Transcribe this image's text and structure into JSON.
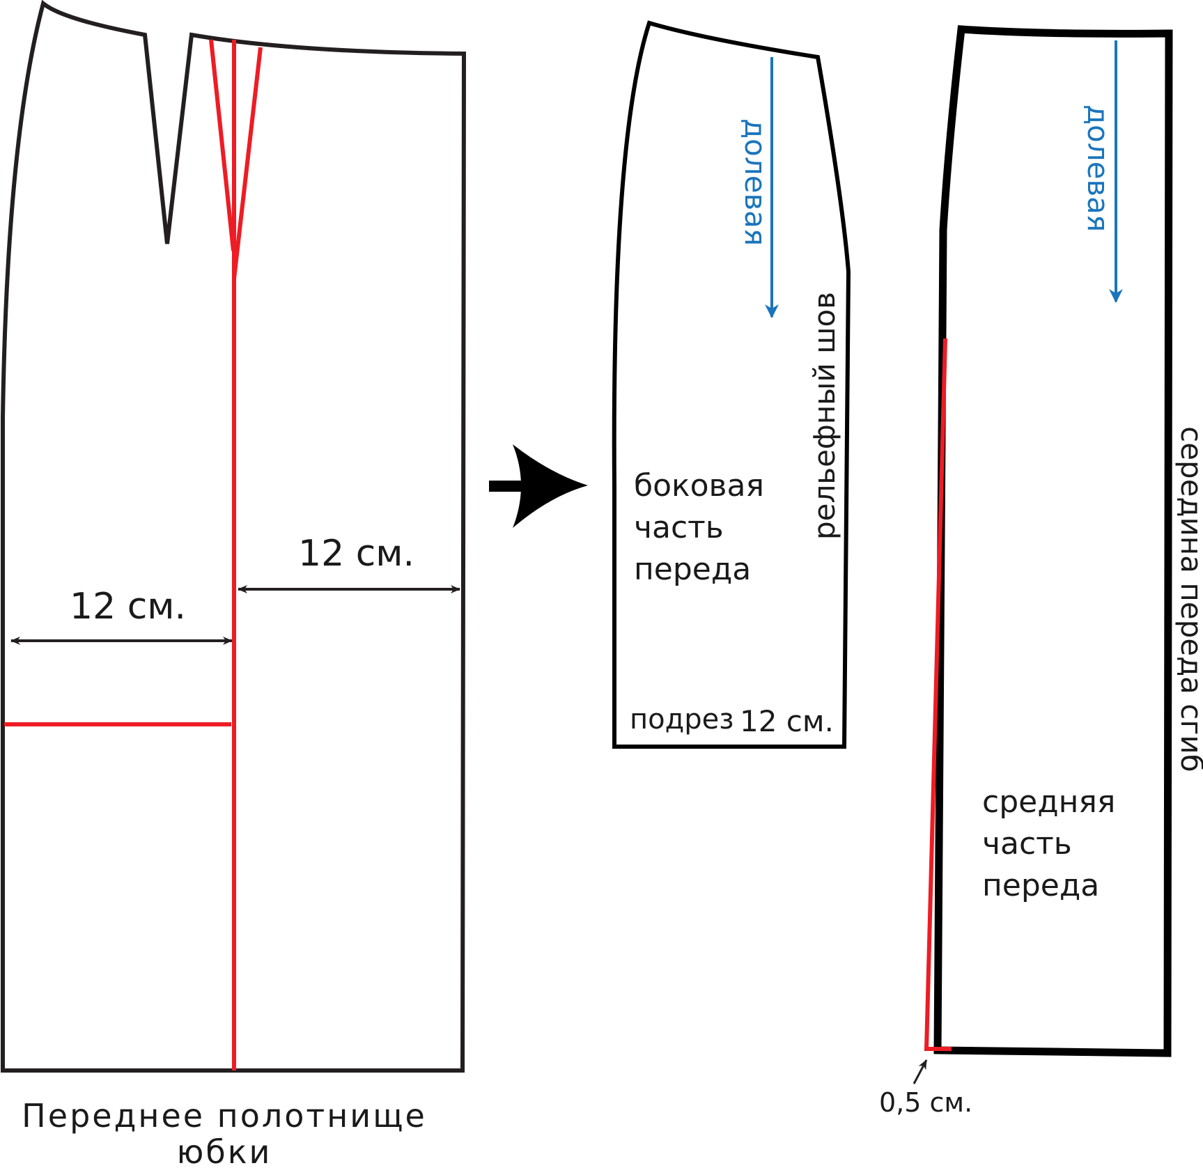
{
  "colors": {
    "outline": "#231f20",
    "red": "#ee1c24",
    "blue": "#1a75bc",
    "text": "#1a1a1a"
  },
  "front_panel": {
    "title_line1": "Переднее полотнище",
    "title_line2": "юбки",
    "dim_left": "12 см.",
    "dim_right": "12 см."
  },
  "side_piece": {
    "label_line1": "боковая",
    "label_line2": "часть",
    "label_line3": "переда",
    "grain": "долевая",
    "seam": "рельефный шов",
    "cut_word": "подрез",
    "cut_value": "12 см."
  },
  "middle_piece": {
    "label_line1": "средняя",
    "label_line2": "часть",
    "label_line3": "переда",
    "grain": "долевая",
    "fold": "середина переда сгиб",
    "offset": "0,5 см."
  }
}
